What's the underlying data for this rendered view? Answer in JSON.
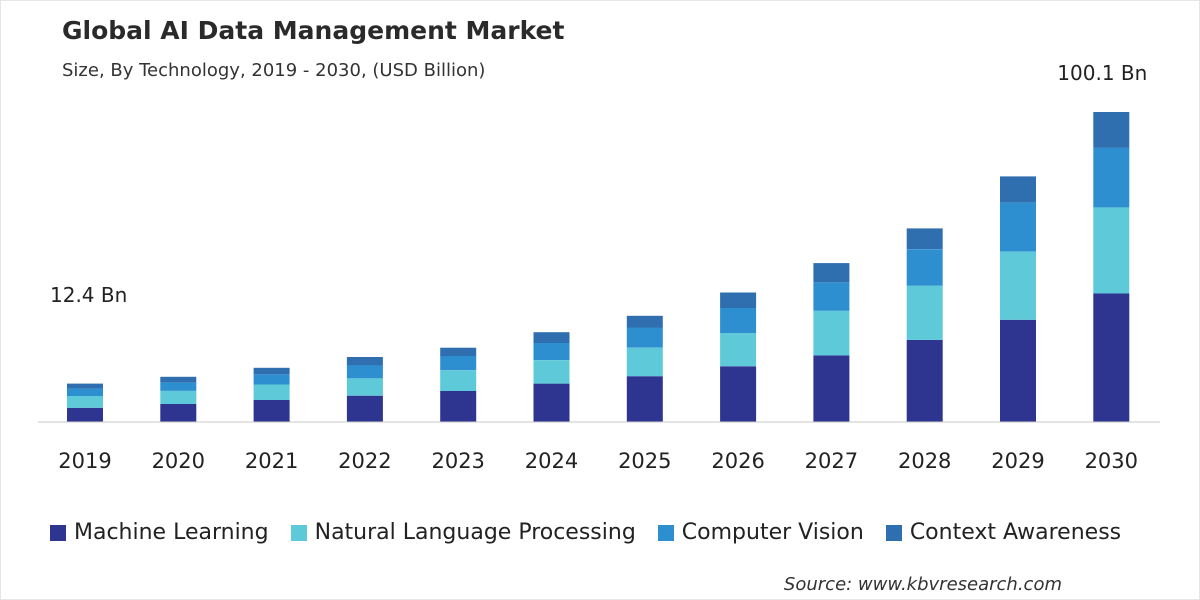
{
  "chart_data": {
    "type": "bar",
    "stacked": true,
    "title": "Global AI Data Management Market",
    "subtitle": "Size, By Technology, 2019 - 2030, (USD Billion)",
    "categories": [
      "2019",
      "2020",
      "2021",
      "2022",
      "2023",
      "2024",
      "2025",
      "2026",
      "2027",
      "2028",
      "2029",
      "2030"
    ],
    "series": [
      {
        "name": "Machine Learning",
        "color": "#2e3590",
        "values": [
          4.6,
          5.8,
          7.1,
          8.5,
          10.0,
          12.4,
          14.8,
          18.0,
          21.5,
          26.5,
          33.0,
          41.5
        ]
      },
      {
        "name": "Natural Language Processing",
        "color": "#5ec9d8",
        "values": [
          3.8,
          4.3,
          5.0,
          5.6,
          6.7,
          7.6,
          9.2,
          10.7,
          14.4,
          17.5,
          22.0,
          27.8
        ]
      },
      {
        "name": "Computer Vision",
        "color": "#2e8fd0",
        "values": [
          2.4,
          2.7,
          3.3,
          4.3,
          4.6,
          5.5,
          6.5,
          8.1,
          9.2,
          11.8,
          15.8,
          19.2
        ]
      },
      {
        "name": "Context Awareness",
        "color": "#2f6fb0",
        "values": [
          1.6,
          1.8,
          2.1,
          2.6,
          2.7,
          3.5,
          3.8,
          5.0,
          6.2,
          6.7,
          8.5,
          11.6
        ]
      }
    ],
    "annotations": [
      {
        "category": "2019",
        "text": "12.4 Bn"
      },
      {
        "category": "2030",
        "text": "100.1 Bn"
      }
    ],
    "ylim": [
      0,
      100.1
    ],
    "grid": false,
    "legend": "bottom"
  },
  "source": "Source: www.kbvresearch.com"
}
